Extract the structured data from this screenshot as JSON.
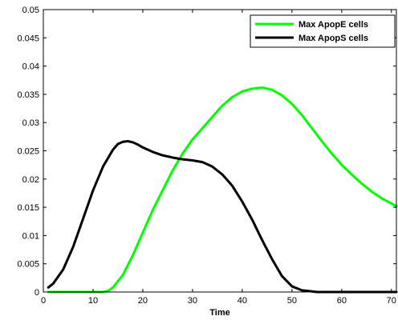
{
  "chart_data": {
    "type": "line",
    "title": "",
    "xlabel": "Time",
    "ylabel": "",
    "xlim": [
      0,
      71
    ],
    "ylim": [
      0,
      0.05
    ],
    "xticks": [
      0,
      10,
      20,
      30,
      40,
      50,
      60,
      70
    ],
    "yticks": [
      0,
      0.005,
      0.01,
      0.015,
      0.02,
      0.025,
      0.03,
      0.035,
      0.04,
      0.045,
      0.05
    ],
    "xtick_labels": [
      "0",
      "10",
      "20",
      "30",
      "40",
      "50",
      "60",
      "70"
    ],
    "ytick_labels": [
      "0",
      "0.005",
      "0.01",
      "0.015",
      "0.02",
      "0.025",
      "0.03",
      "0.035",
      "0.04",
      "0.045",
      "0.05"
    ],
    "grid": false,
    "legend_position": "top-right",
    "series": [
      {
        "name": "Max ApopE cells",
        "color": "#00ff00",
        "x": [
          1,
          5,
          10,
          12,
          13,
          14,
          16,
          18,
          20,
          22,
          24,
          26,
          28,
          30,
          32,
          34,
          36,
          38,
          40,
          42,
          44,
          46,
          48,
          50,
          52,
          54,
          56,
          58,
          60,
          62,
          64,
          66,
          68,
          71
        ],
        "y": [
          0,
          0,
          0,
          0,
          0.0002,
          0.0008,
          0.003,
          0.0065,
          0.0105,
          0.0145,
          0.018,
          0.0215,
          0.0245,
          0.027,
          0.029,
          0.031,
          0.033,
          0.0345,
          0.0355,
          0.036,
          0.0362,
          0.0358,
          0.0348,
          0.0333,
          0.0313,
          0.029,
          0.0267,
          0.0245,
          0.0225,
          0.0208,
          0.0192,
          0.0178,
          0.0166,
          0.0152
        ]
      },
      {
        "name": "Max ApopS cells",
        "color": "#000000",
        "x": [
          1,
          2,
          4,
          6,
          8,
          10,
          12,
          14,
          15,
          16,
          17,
          18,
          19,
          20,
          22,
          24,
          26,
          28,
          30,
          32,
          34,
          36,
          38,
          40,
          42,
          44,
          46,
          48,
          50,
          52,
          54,
          55,
          56,
          60,
          65,
          71
        ],
        "y": [
          0.0008,
          0.0015,
          0.004,
          0.008,
          0.013,
          0.018,
          0.0222,
          0.0252,
          0.0262,
          0.0266,
          0.0267,
          0.0265,
          0.0261,
          0.0256,
          0.0248,
          0.0242,
          0.0238,
          0.0235,
          0.0233,
          0.023,
          0.0222,
          0.0208,
          0.0188,
          0.016,
          0.0128,
          0.0092,
          0.0058,
          0.0028,
          0.001,
          0.0003,
          0.0001,
          0,
          0,
          0,
          0,
          0
        ]
      }
    ]
  }
}
